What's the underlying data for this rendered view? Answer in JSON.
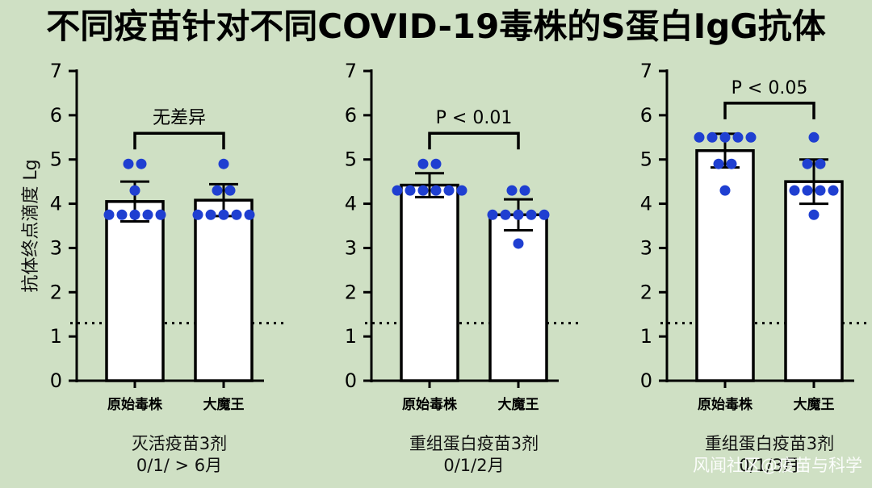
{
  "title": "不同疫苗针对不同COVID-19毒株的S蛋白IgG抗体",
  "ylabel": "抗体终点滴度 Lg",
  "watermark": "风闻社区@疫苗与科学",
  "colors": {
    "background": "#cfe0c4",
    "dots": "#1f3fd1",
    "bar_fill": "#ffffff",
    "axis": "#000000"
  },
  "chart_data": [
    {
      "type": "bar",
      "categories": [
        "原始毒株",
        "大魔王"
      ],
      "values": [
        4.05,
        4.08
      ],
      "error": [
        0.45,
        0.36
      ],
      "points": [
        [
          3.75,
          3.75,
          3.75,
          3.75,
          3.75,
          4.3,
          4.9,
          4.9
        ],
        [
          3.75,
          3.75,
          3.75,
          3.75,
          3.75,
          4.3,
          4.3,
          4.9
        ]
      ],
      "ylim": [
        0,
        7
      ],
      "yticks": [
        "0",
        "1",
        "2",
        "3",
        "4",
        "5",
        "6",
        "7"
      ],
      "reference_line": 1.3,
      "significance": "无差异",
      "caption": [
        "灭活疫苗3剂",
        "0/1/ > 6月"
      ]
    },
    {
      "type": "bar",
      "categories": [
        "原始毒株",
        "大魔王"
      ],
      "values": [
        4.42,
        3.75
      ],
      "error": [
        0.27,
        0.35
      ],
      "points": [
        [
          4.3,
          4.3,
          4.3,
          4.3,
          4.3,
          4.3,
          4.9,
          4.9
        ],
        [
          3.1,
          3.75,
          3.75,
          3.75,
          3.75,
          3.75,
          4.3,
          4.3
        ]
      ],
      "ylim": [
        0,
        7
      ],
      "yticks": [
        "0",
        "1",
        "2",
        "3",
        "4",
        "5",
        "6",
        "7"
      ],
      "reference_line": 1.3,
      "significance": "P < 0.01",
      "caption": [
        "重组蛋白疫苗3剂",
        "0/1/2月"
      ]
    },
    {
      "type": "bar",
      "categories": [
        "原始毒株",
        "大魔王"
      ],
      "values": [
        5.2,
        4.5
      ],
      "error": [
        0.38,
        0.5
      ],
      "points": [
        [
          4.3,
          4.9,
          4.9,
          5.5,
          5.5,
          5.5,
          5.5,
          5.5
        ],
        [
          3.75,
          4.3,
          4.3,
          4.3,
          4.3,
          4.9,
          4.9,
          5.5
        ]
      ],
      "ylim": [
        0,
        7
      ],
      "yticks": [
        "0",
        "1",
        "2",
        "3",
        "4",
        "5",
        "6",
        "7"
      ],
      "reference_line": 1.3,
      "significance": "P < 0.05",
      "caption": [
        "重组蛋白疫苗3剂",
        "0/1/3月"
      ]
    }
  ]
}
